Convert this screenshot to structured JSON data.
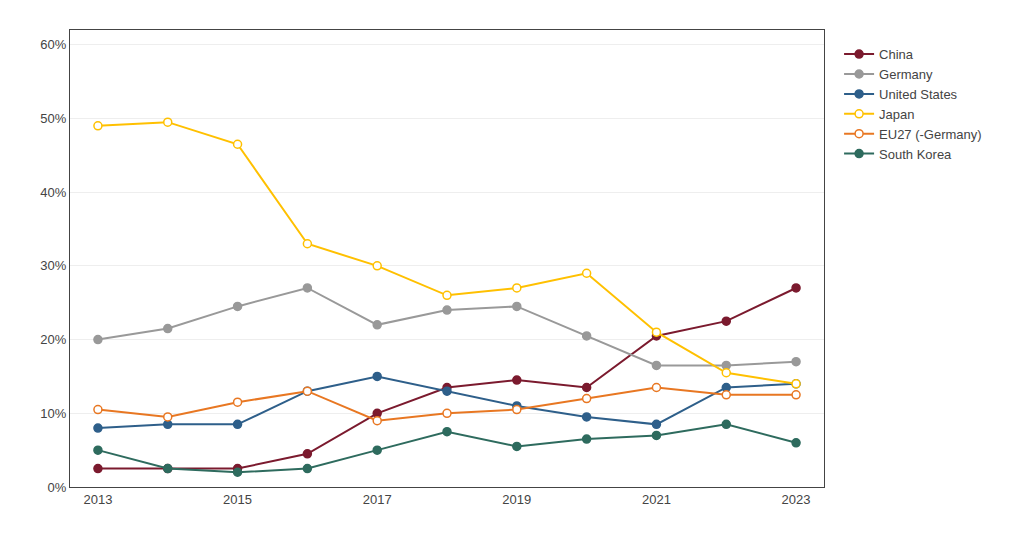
{
  "chart_data": {
    "type": "line",
    "x": [
      2013,
      2014,
      2015,
      2016,
      2017,
      2018,
      2019,
      2020,
      2021,
      2022,
      2023
    ],
    "series": [
      {
        "name": "China",
        "color": "#7B1A2E",
        "marker": "circle",
        "values": [
          0.025,
          0.025,
          0.025,
          0.045,
          0.1,
          0.135,
          0.145,
          0.135,
          0.205,
          0.225,
          0.27
        ]
      },
      {
        "name": "Germany",
        "color": "#999999",
        "marker": "circle",
        "values": [
          0.2,
          0.215,
          0.245,
          0.27,
          0.22,
          0.24,
          0.245,
          0.205,
          0.165,
          0.165,
          0.17
        ]
      },
      {
        "name": "United States",
        "color": "#2E5F8A",
        "marker": "circle",
        "values": [
          0.08,
          0.085,
          0.085,
          0.13,
          0.15,
          0.13,
          0.11,
          0.095,
          0.085,
          0.135,
          0.14
        ]
      },
      {
        "name": "Japan",
        "color": "#FFC000",
        "marker": "hollow",
        "values": [
          0.49,
          0.495,
          0.465,
          0.33,
          0.3,
          0.26,
          0.27,
          0.29,
          0.21,
          0.155,
          0.14
        ]
      },
      {
        "name": "EU27 (-Germany)",
        "color": "#E87722",
        "marker": "hollow",
        "values": [
          0.105,
          0.095,
          0.115,
          0.13,
          0.09,
          0.1,
          0.105,
          0.12,
          0.135,
          0.125,
          0.125
        ]
      },
      {
        "name": "South Korea",
        "color": "#2E6B5E",
        "marker": "circle",
        "values": [
          0.05,
          0.025,
          0.02,
          0.025,
          0.05,
          0.075,
          0.055,
          0.065,
          0.07,
          0.085,
          0.06
        ]
      }
    ],
    "xlim": [
      2012.6,
      2023.4
    ],
    "xticks": [
      2013,
      2015,
      2017,
      2019,
      2021,
      2023
    ],
    "ylim": [
      0.0,
      0.62
    ],
    "yticks": [
      {
        "value": 0.0,
        "label": "0%"
      },
      {
        "value": 0.1,
        "label": "10%"
      },
      {
        "value": 0.2,
        "label": "20%"
      },
      {
        "value": 0.3,
        "label": "30%"
      },
      {
        "value": 0.4,
        "label": "40%"
      },
      {
        "value": 0.5,
        "label": "50%"
      },
      {
        "value": 0.6,
        "label": "60%"
      }
    ],
    "grid": "y",
    "legend": "right"
  }
}
